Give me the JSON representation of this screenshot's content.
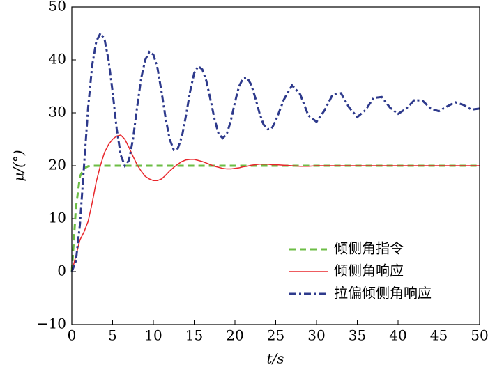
{
  "chart_data": {
    "type": "line",
    "x_label": "t/s",
    "y_label": "μ/(°)",
    "x": [
      0,
      0.5,
      1,
      1.5,
      2,
      2.5,
      3,
      3.5,
      4,
      4.5,
      5,
      5.5,
      6,
      6.5,
      7,
      7.5,
      8,
      8.5,
      9,
      9.5,
      10,
      10.5,
      11,
      11.5,
      12,
      12.5,
      13,
      13.5,
      14,
      14.5,
      15,
      15.5,
      16,
      16.5,
      17,
      17.5,
      18,
      18.5,
      19,
      19.5,
      20,
      20.5,
      21,
      21.5,
      22,
      22.5,
      23,
      23.5,
      24,
      24.5,
      25,
      26,
      27,
      28,
      29,
      30,
      31,
      32,
      33,
      34,
      35,
      36,
      37,
      38,
      39,
      40,
      41,
      42,
      43,
      44,
      45,
      46,
      47,
      48,
      49,
      50
    ],
    "series": [
      {
        "name": "倾侧角指令",
        "color": "#6cbd45",
        "linestyle": "dashed",
        "values": [
          0,
          12,
          18,
          19.5,
          19.9,
          20,
          20,
          20,
          20,
          20,
          20,
          20,
          20,
          20,
          20,
          20,
          20,
          20,
          20,
          20,
          20,
          20,
          20,
          20,
          20,
          20,
          20,
          20,
          20,
          20,
          20,
          20,
          20,
          20,
          20,
          20,
          20,
          20,
          20,
          20,
          20,
          20,
          20,
          20,
          20,
          20,
          20,
          20,
          20,
          20,
          20,
          20,
          20,
          20,
          20,
          20,
          20,
          20,
          20,
          20,
          20,
          20,
          20,
          20,
          20,
          20,
          20,
          20,
          20,
          20,
          20,
          20,
          20,
          20,
          20,
          20
        ]
      },
      {
        "name": "倾侧角响应",
        "color": "#e8262b",
        "linestyle": "solid",
        "values": [
          0,
          3,
          6,
          7.5,
          9.5,
          13,
          17,
          20,
          22.5,
          24,
          25,
          25.6,
          25.8,
          25,
          23.5,
          21.8,
          20.2,
          19,
          18,
          17.5,
          17.2,
          17.2,
          17.5,
          18.2,
          19,
          19.7,
          20.3,
          20.8,
          21.1,
          21.2,
          21.2,
          21,
          20.8,
          20.5,
          20.2,
          19.9,
          19.7,
          19.5,
          19.4,
          19.4,
          19.5,
          19.6,
          19.8,
          19.9,
          20.1,
          20.2,
          20.3,
          20.3,
          20.3,
          20.2,
          20.2,
          20.1,
          20,
          19.9,
          19.9,
          20,
          20,
          20,
          20,
          20,
          20,
          20,
          20,
          20,
          20,
          20,
          20,
          20,
          20,
          20,
          20,
          20,
          20,
          20,
          20,
          20
        ]
      },
      {
        "name": "拉偏倾侧角响应",
        "color": "#2e3a8c",
        "linestyle": "dashdot",
        "values": [
          0,
          2,
          9,
          20,
          31,
          39,
          43.5,
          45,
          44,
          40,
          34,
          27,
          22,
          20,
          21,
          25,
          31,
          36.5,
          40,
          41.5,
          41,
          38.5,
          34,
          29,
          25,
          23,
          23.3,
          25.5,
          29.5,
          34,
          37.5,
          38.8,
          38.2,
          36,
          32.5,
          28.8,
          26,
          25.2,
          26,
          28.5,
          32,
          35,
          36.5,
          36.6,
          35.3,
          32.8,
          30,
          27.8,
          26.9,
          27,
          28.5,
          32.5,
          35.2,
          33.5,
          29.5,
          28.3,
          30.5,
          33.5,
          33.7,
          31,
          29.2,
          30.5,
          32.8,
          33,
          31,
          29.8,
          30.8,
          32.4,
          32.3,
          30.8,
          30.3,
          31.2,
          32,
          31.5,
          30.6,
          30.8
        ]
      }
    ],
    "xlim": [
      0,
      50
    ],
    "xticks": [
      0,
      5,
      10,
      15,
      20,
      25,
      30,
      35,
      40,
      45,
      50
    ],
    "ylim": [
      -10,
      50
    ],
    "yticks": [
      {
        "value": -10,
        "label": "−10"
      },
      0,
      10,
      20,
      30,
      40,
      50
    ],
    "legend": "lower right"
  }
}
